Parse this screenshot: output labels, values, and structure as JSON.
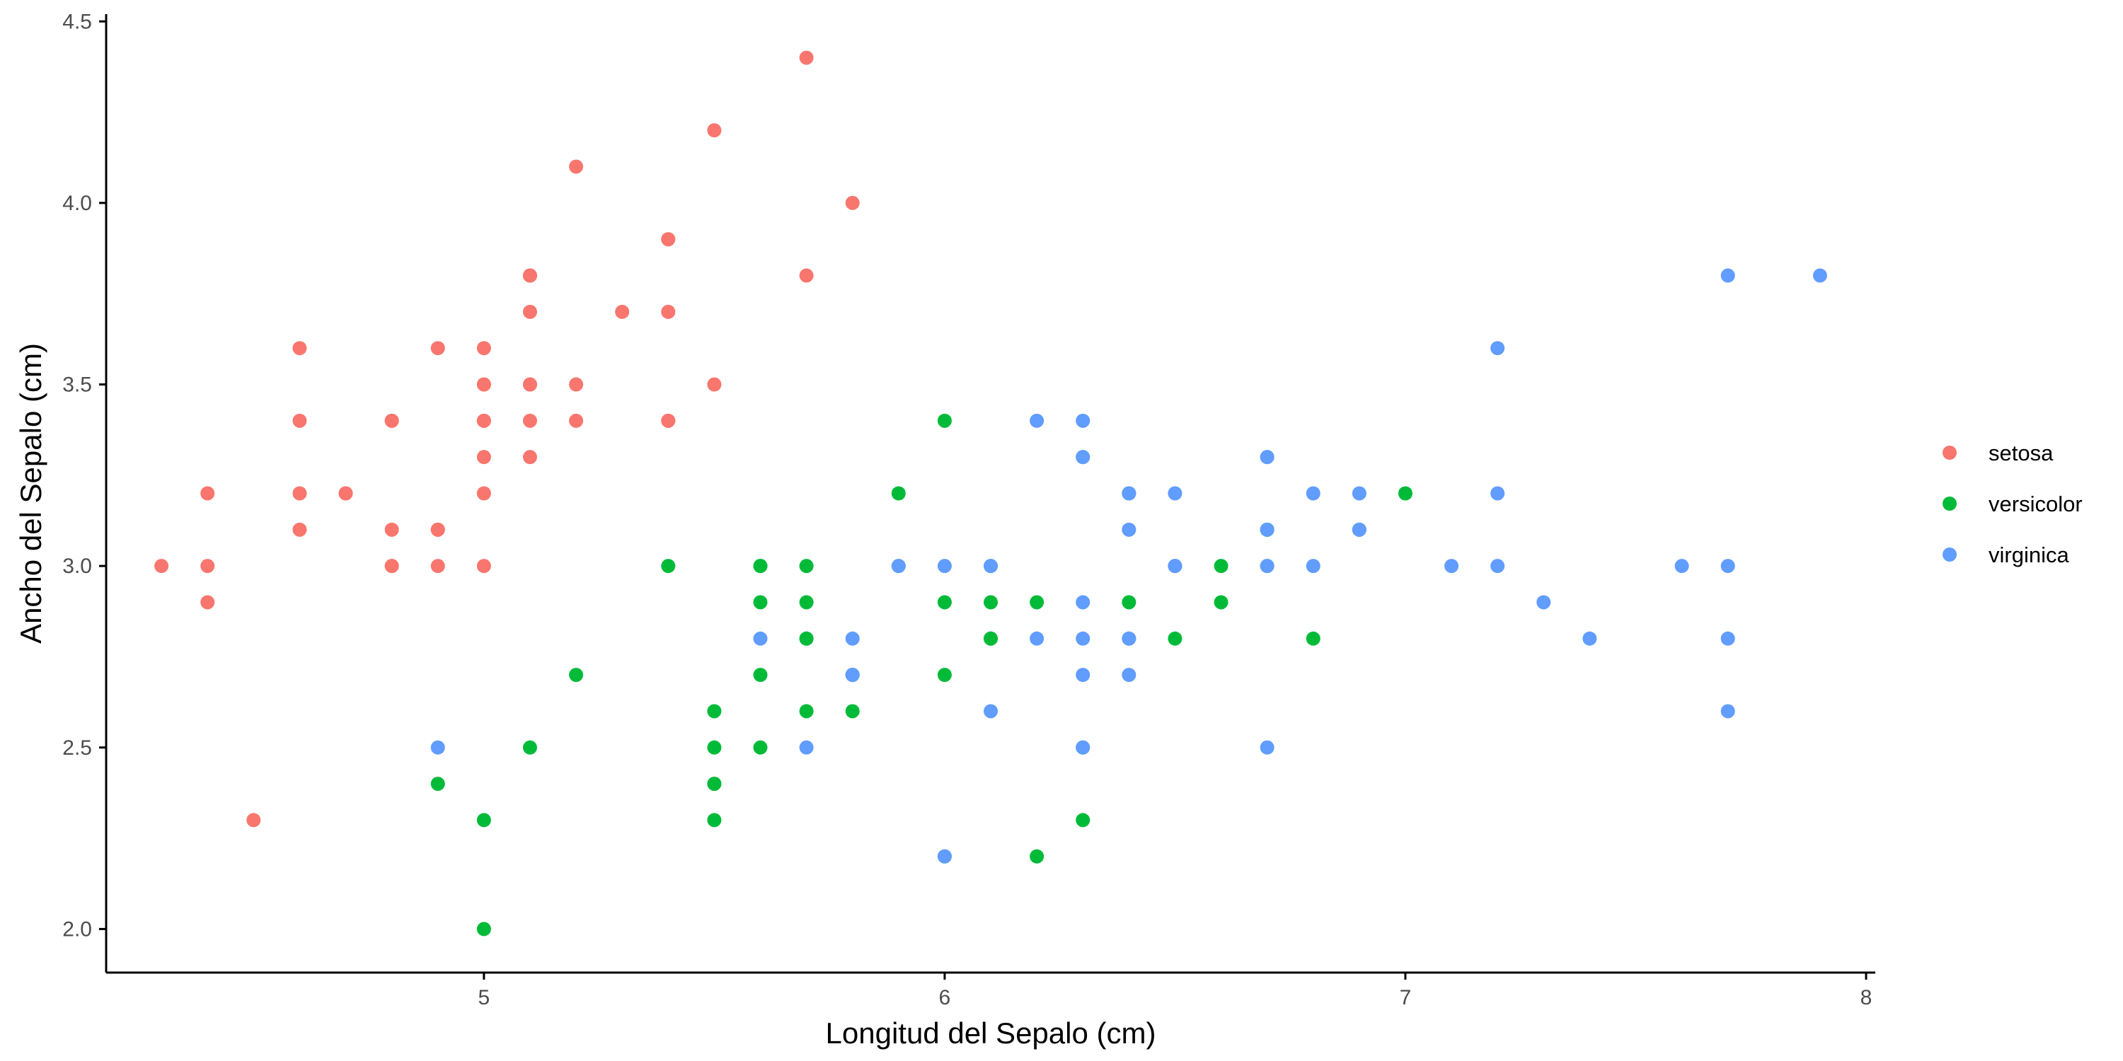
{
  "chart_data": {
    "type": "scatter",
    "title": "",
    "xlabel": "Longitud del Sepalo (cm)",
    "ylabel": "Ancho del Sepalo (cm)",
    "xlim": [
      4.18,
      8.02
    ],
    "ylim": [
      1.88,
      4.52
    ],
    "x_ticks": [
      5,
      6,
      7,
      8
    ],
    "x_tick_labels": [
      "5",
      "6",
      "7",
      "8"
    ],
    "y_ticks": [
      2.0,
      2.5,
      3.0,
      3.5,
      4.0,
      4.5
    ],
    "y_tick_labels": [
      "2.0",
      "2.5",
      "3.0",
      "3.5",
      "4.0",
      "4.5"
    ],
    "grid": false,
    "legend_position": "right",
    "series": [
      {
        "name": "setosa",
        "color": "#F8766D",
        "points": [
          [
            5.1,
            3.5
          ],
          [
            4.9,
            3.0
          ],
          [
            4.7,
            3.2
          ],
          [
            4.6,
            3.1
          ],
          [
            5.0,
            3.6
          ],
          [
            5.4,
            3.9
          ],
          [
            4.6,
            3.4
          ],
          [
            5.0,
            3.4
          ],
          [
            4.4,
            2.9
          ],
          [
            4.9,
            3.1
          ],
          [
            5.4,
            3.7
          ],
          [
            4.8,
            3.4
          ],
          [
            4.8,
            3.0
          ],
          [
            4.3,
            3.0
          ],
          [
            5.8,
            4.0
          ],
          [
            5.7,
            4.4
          ],
          [
            5.4,
            3.9
          ],
          [
            5.1,
            3.5
          ],
          [
            5.7,
            3.8
          ],
          [
            5.1,
            3.8
          ],
          [
            5.4,
            3.4
          ],
          [
            5.1,
            3.7
          ],
          [
            4.6,
            3.6
          ],
          [
            5.1,
            3.3
          ],
          [
            4.8,
            3.4
          ],
          [
            5.0,
            3.0
          ],
          [
            5.0,
            3.4
          ],
          [
            5.2,
            3.5
          ],
          [
            5.2,
            3.4
          ],
          [
            4.7,
            3.2
          ],
          [
            4.8,
            3.1
          ],
          [
            5.4,
            3.4
          ],
          [
            5.2,
            4.1
          ],
          [
            5.5,
            4.2
          ],
          [
            4.9,
            3.1
          ],
          [
            5.0,
            3.2
          ],
          [
            5.5,
            3.5
          ],
          [
            4.9,
            3.6
          ],
          [
            4.4,
            3.0
          ],
          [
            5.1,
            3.4
          ],
          [
            5.0,
            3.5
          ],
          [
            4.5,
            2.3
          ],
          [
            4.4,
            3.2
          ],
          [
            5.0,
            3.5
          ],
          [
            5.1,
            3.8
          ],
          [
            4.8,
            3.0
          ],
          [
            5.1,
            3.8
          ],
          [
            4.6,
            3.2
          ],
          [
            5.3,
            3.7
          ],
          [
            5.0,
            3.3
          ]
        ]
      },
      {
        "name": "versicolor",
        "color": "#00BA38",
        "points": [
          [
            7.0,
            3.2
          ],
          [
            6.4,
            3.2
          ],
          [
            6.9,
            3.1
          ],
          [
            5.5,
            2.3
          ],
          [
            6.5,
            2.8
          ],
          [
            5.7,
            2.8
          ],
          [
            6.3,
            3.3
          ],
          [
            4.9,
            2.4
          ],
          [
            6.6,
            2.9
          ],
          [
            5.2,
            2.7
          ],
          [
            5.0,
            2.0
          ],
          [
            5.9,
            3.0
          ],
          [
            6.0,
            2.2
          ],
          [
            6.1,
            2.9
          ],
          [
            5.6,
            2.9
          ],
          [
            6.7,
            3.1
          ],
          [
            5.6,
            3.0
          ],
          [
            5.8,
            2.7
          ],
          [
            6.2,
            2.2
          ],
          [
            5.6,
            2.5
          ],
          [
            5.9,
            3.2
          ],
          [
            6.1,
            2.8
          ],
          [
            6.3,
            2.5
          ],
          [
            6.1,
            2.8
          ],
          [
            6.4,
            2.9
          ],
          [
            6.6,
            3.0
          ],
          [
            6.8,
            2.8
          ],
          [
            6.7,
            3.0
          ],
          [
            6.0,
            2.9
          ],
          [
            5.7,
            2.6
          ],
          [
            5.5,
            2.4
          ],
          [
            5.5,
            2.4
          ],
          [
            5.8,
            2.7
          ],
          [
            6.0,
            2.7
          ],
          [
            5.4,
            3.0
          ],
          [
            6.0,
            3.4
          ],
          [
            6.7,
            3.1
          ],
          [
            6.3,
            2.3
          ],
          [
            5.6,
            3.0
          ],
          [
            5.5,
            2.5
          ],
          [
            5.5,
            2.6
          ],
          [
            6.1,
            3.0
          ],
          [
            5.8,
            2.6
          ],
          [
            5.0,
            2.3
          ],
          [
            5.6,
            2.7
          ],
          [
            5.7,
            3.0
          ],
          [
            5.7,
            2.9
          ],
          [
            6.2,
            2.9
          ],
          [
            5.1,
            2.5
          ],
          [
            5.7,
            2.8
          ]
        ]
      },
      {
        "name": "virginica",
        "color": "#619CFF",
        "points": [
          [
            6.3,
            3.3
          ],
          [
            5.8,
            2.7
          ],
          [
            7.1,
            3.0
          ],
          [
            6.3,
            2.9
          ],
          [
            6.5,
            3.0
          ],
          [
            7.6,
            3.0
          ],
          [
            4.9,
            2.5
          ],
          [
            7.3,
            2.9
          ],
          [
            6.7,
            2.5
          ],
          [
            7.2,
            3.6
          ],
          [
            6.5,
            3.2
          ],
          [
            6.4,
            2.7
          ],
          [
            6.8,
            3.0
          ],
          [
            5.7,
            2.5
          ],
          [
            5.8,
            2.8
          ],
          [
            6.4,
            3.2
          ],
          [
            6.5,
            3.0
          ],
          [
            7.7,
            3.8
          ],
          [
            7.7,
            2.6
          ],
          [
            6.0,
            2.2
          ],
          [
            6.9,
            3.2
          ],
          [
            5.6,
            2.8
          ],
          [
            7.7,
            2.8
          ],
          [
            6.3,
            2.7
          ],
          [
            6.7,
            3.3
          ],
          [
            7.2,
            3.2
          ],
          [
            6.2,
            2.8
          ],
          [
            6.1,
            3.0
          ],
          [
            6.4,
            2.8
          ],
          [
            7.2,
            3.0
          ],
          [
            7.4,
            2.8
          ],
          [
            7.9,
            3.8
          ],
          [
            6.4,
            2.8
          ],
          [
            6.3,
            2.8
          ],
          [
            6.1,
            2.6
          ],
          [
            7.7,
            3.0
          ],
          [
            6.3,
            3.4
          ],
          [
            6.4,
            3.1
          ],
          [
            6.0,
            3.0
          ],
          [
            6.9,
            3.1
          ],
          [
            6.7,
            3.1
          ],
          [
            6.9,
            3.1
          ],
          [
            5.8,
            2.7
          ],
          [
            6.8,
            3.2
          ],
          [
            6.7,
            3.3
          ],
          [
            6.7,
            3.0
          ],
          [
            6.3,
            2.5
          ],
          [
            6.5,
            3.0
          ],
          [
            6.2,
            3.4
          ],
          [
            5.9,
            3.0
          ]
        ]
      }
    ]
  }
}
